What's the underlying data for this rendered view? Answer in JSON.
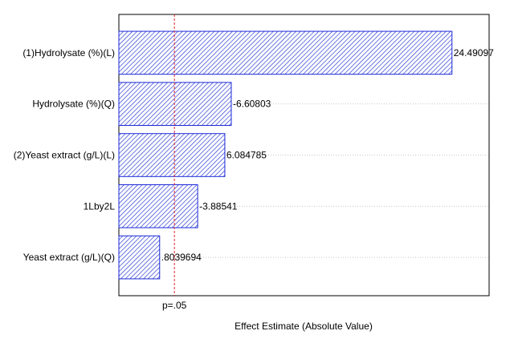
{
  "chart_data": {
    "type": "bar",
    "orientation": "horizontal",
    "categories": [
      "(1)Hydrolysate (%)(L)",
      "Hydrolysate (%)(Q)",
      "(2)Yeast extract (g/L)(L)",
      "1Lby2L",
      "Yeast extract (g/L)(Q)"
    ],
    "values": [
      24.49097,
      6.60803,
      6.084785,
      3.88541,
      0.8039694
    ],
    "value_labels": [
      "24.49097",
      "-6.60803",
      "6.084785",
      "-3.88541",
      ".8039694"
    ],
    "xlabel": "Effect Estimate (Absolute Value)",
    "xlim": [
      -2.5,
      27.5
    ],
    "reference_line": {
      "value": 2.0,
      "label": "p=.05"
    },
    "grid": true,
    "colors": {
      "bar_stroke": "#1a28d8",
      "hatch": "#2030d0",
      "ref_line": "#e0202c",
      "grid": "#c8c8c8"
    }
  }
}
